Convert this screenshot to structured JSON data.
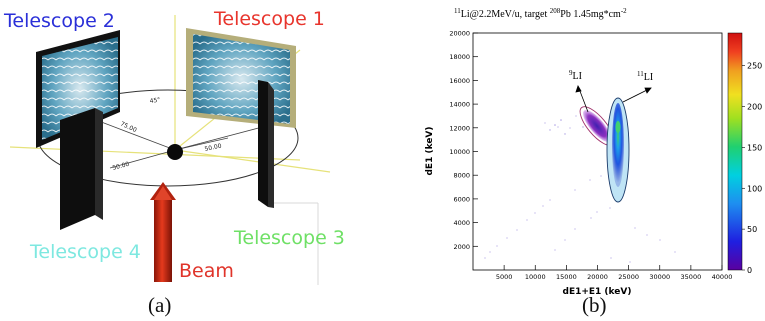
{
  "panel_a": {
    "caption": "(a)",
    "labels": {
      "telescope_1": "Telescope 1",
      "telescope_2": "Telescope 2",
      "telescope_3": "Telescope 3",
      "telescope_4": "Telescope 4",
      "beam": "Beam"
    },
    "colors": {
      "telescope_1": "#e8352d",
      "telescope_2": "#2a2fd8",
      "telescope_3": "#6fe066",
      "telescope_4": "#7ee8e0",
      "beam": "#e0342a"
    },
    "dimension_labels": [
      "45°",
      "75.00",
      "50.00",
      "50.00"
    ]
  },
  "panel_b": {
    "caption": "(b)",
    "title_parts": {
      "mass_a": "11",
      "ion": "Li@2.2MeV/u, target ",
      "mass_b": "208",
      "target": "Pb 1.45mg*cm",
      "exp": "-2"
    },
    "annotations": {
      "li9_mass": "9",
      "li9_label": "LI",
      "li11_mass": "11",
      "li11_label": "LI"
    },
    "chart_data": {
      "type": "heatmap",
      "xlabel": "dE1+E1 (keV)",
      "ylabel": "dE1 (keV)",
      "xlim": [
        0,
        40000
      ],
      "ylim": [
        0,
        20000
      ],
      "x_ticks": [
        "5000",
        "10000",
        "15000",
        "20000",
        "25000",
        "30000",
        "35000",
        "40000"
      ],
      "y_ticks": [
        "2000",
        "4000",
        "6000",
        "8000",
        "10000",
        "12000",
        "14000",
        "16000",
        "18000",
        "20000"
      ],
      "colorbar_ticks": [
        "0",
        "50",
        "100",
        "150",
        "200",
        "250"
      ],
      "colorbar_range": [
        0,
        290
      ],
      "clusters": [
        {
          "name": "9Li",
          "center": [
            19500,
            12500
          ],
          "description_visible": false
        },
        {
          "name": "11Li",
          "center": [
            23500,
            9500
          ],
          "description_visible": false
        }
      ]
    }
  }
}
